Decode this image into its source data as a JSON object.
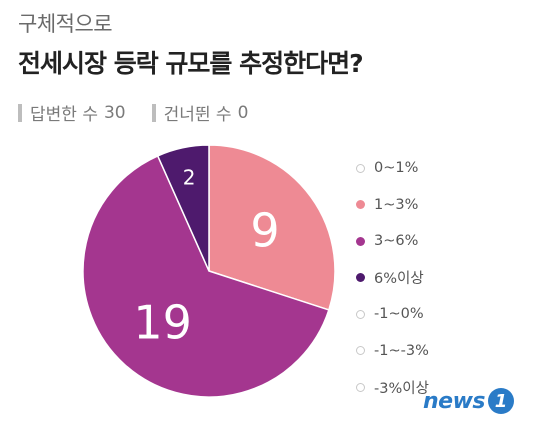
{
  "header": {
    "subtitle": "구체적으로",
    "title": "전세시장 등락 규모를 추정한다면?"
  },
  "stats": {
    "answered_label": "답변한 수",
    "answered_count": "30",
    "skipped_label": "건너뛴 수",
    "skipped_count": "0"
  },
  "chart_data": {
    "type": "pie",
    "title": "전세시장 등락 규모를 추정한다면?",
    "categories": [
      "0~1%",
      "1~3%",
      "3~6%",
      "6%이상",
      "-1~0%",
      "-1~-3%",
      "-3%이상"
    ],
    "values": [
      0,
      9,
      19,
      2,
      0,
      0,
      0
    ],
    "colors": [
      "#ffffff",
      "#ee8a94",
      "#a4368f",
      "#4e1a6d",
      "#ffffff",
      "#ffffff",
      "#ffffff"
    ],
    "legend_position": "right"
  },
  "logo": {
    "text": "news",
    "badge": "1"
  }
}
